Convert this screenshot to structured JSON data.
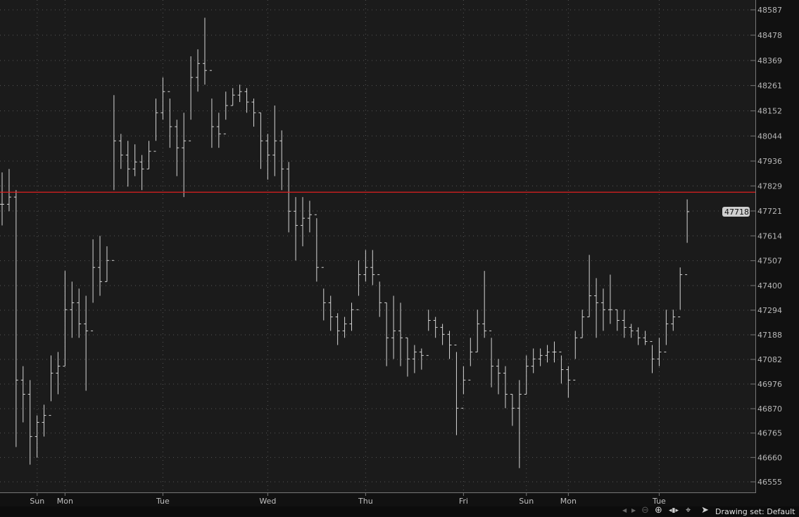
{
  "chart_data": {
    "type": "ohlc",
    "ylim": [
      46555,
      48587
    ],
    "y_ticks": [
      48587,
      48478,
      48369,
      48261,
      48152,
      48044,
      47936,
      47829,
      47721,
      47614,
      47507,
      47400,
      47294,
      47188,
      47082,
      46976,
      46870,
      46765,
      46660,
      46555
    ],
    "grid": true,
    "current_price": "47718",
    "reference_line": 47802,
    "colors": {
      "background": "#1b1b1b",
      "bars": "#d4d4d4",
      "reference_line": "#e02020",
      "grid": "#555555",
      "axis_background": "#111111"
    },
    "x_labels": [
      {
        "label": "Sun",
        "bar": 3
      },
      {
        "label": "Mon",
        "bar": 9
      },
      {
        "label": "Tue",
        "bar": 23
      },
      {
        "label": "Wed",
        "bar": 38
      },
      {
        "label": "Thu",
        "bar": 52
      },
      {
        "label": "Fri",
        "bar": 66
      },
      {
        "label": "Sun",
        "bar": 75
      },
      {
        "label": "Mon",
        "bar": 81
      },
      {
        "label": "Tue",
        "bar": 94
      }
    ],
    "bars_hlc": [
      [
        47887,
        47659,
        47750
      ],
      [
        47902,
        47720,
        47781
      ],
      [
        47811,
        46705,
        46993
      ],
      [
        47053,
        46811,
        46932
      ],
      [
        46993,
        46629,
        46750
      ],
      [
        46841,
        46659,
        46811
      ],
      [
        46887,
        46750,
        46841
      ],
      [
        47099,
        46902,
        47023
      ],
      [
        47114,
        46932,
        47053
      ],
      [
        47463,
        47053,
        47296
      ],
      [
        47417,
        47175,
        47326
      ],
      [
        47387,
        47175,
        47235
      ],
      [
        47356,
        46947,
        47205
      ],
      [
        47599,
        47326,
        47478
      ],
      [
        47614,
        47356,
        47417
      ],
      [
        47569,
        47417,
        47508
      ],
      [
        48220,
        47811,
        48023
      ],
      [
        48053,
        47902,
        47962
      ],
      [
        48023,
        47826,
        47902
      ],
      [
        48008,
        47871,
        47932
      ],
      [
        47962,
        47811,
        47902
      ],
      [
        48023,
        47902,
        47978
      ],
      [
        48205,
        48023,
        48144
      ],
      [
        48296,
        48114,
        48235
      ],
      [
        48205,
        47993,
        48084
      ],
      [
        48114,
        47871,
        47993
      ],
      [
        48144,
        47781,
        48023
      ],
      [
        48387,
        48114,
        48296
      ],
      [
        48417,
        48235,
        48356
      ],
      [
        48553,
        48265,
        48326
      ],
      [
        48205,
        47993,
        48084
      ],
      [
        48144,
        47993,
        48053
      ],
      [
        48235,
        48114,
        48175
      ],
      [
        48250,
        48175,
        48220
      ],
      [
        48265,
        48190,
        48235
      ],
      [
        48250,
        48144,
        48190
      ],
      [
        48205,
        48084,
        48144
      ],
      [
        48144,
        47902,
        48023
      ],
      [
        48053,
        47856,
        47962
      ],
      [
        48175,
        47871,
        48023
      ],
      [
        48068,
        47811,
        47902
      ],
      [
        47932,
        47629,
        47720
      ],
      [
        47781,
        47508,
        47659
      ],
      [
        47781,
        47569,
        47690
      ],
      [
        47765,
        47629,
        47705
      ],
      [
        47690,
        47417,
        47478
      ],
      [
        47387,
        47250,
        47326
      ],
      [
        47356,
        47205,
        47265
      ],
      [
        47281,
        47144,
        47205
      ],
      [
        47265,
        47175,
        47235
      ],
      [
        47326,
        47205,
        47296
      ],
      [
        47508,
        47356,
        47447
      ],
      [
        47553,
        47417,
        47478
      ],
      [
        47553,
        47402,
        47447
      ],
      [
        47417,
        47265,
        47326
      ],
      [
        47326,
        47053,
        47175
      ],
      [
        47356,
        47084,
        47205
      ],
      [
        47326,
        47053,
        47175
      ],
      [
        47175,
        47008,
        47084
      ],
      [
        47144,
        47023,
        47114
      ],
      [
        47129,
        47038,
        47099
      ],
      [
        47296,
        47205,
        47250
      ],
      [
        47265,
        47175,
        47220
      ],
      [
        47235,
        47144,
        47190
      ],
      [
        47205,
        47084,
        47144
      ],
      [
        47114,
        46756,
        46872
      ],
      [
        47053,
        46932,
        46993
      ],
      [
        47175,
        47053,
        47114
      ],
      [
        47296,
        47114,
        47235
      ],
      [
        47463,
        47175,
        47205
      ],
      [
        47175,
        46962,
        47053
      ],
      [
        47084,
        46932,
        47023
      ],
      [
        47053,
        46872,
        46932
      ],
      [
        46932,
        46796,
        46872
      ],
      [
        46993,
        46614,
        46932
      ],
      [
        47099,
        46932,
        47053
      ],
      [
        47129,
        47023,
        47084
      ],
      [
        47129,
        47053,
        47099
      ],
      [
        47144,
        47069,
        47114
      ],
      [
        47159,
        47069,
        47114
      ],
      [
        47099,
        46978,
        47038
      ],
      [
        47053,
        46917,
        46993
      ],
      [
        47205,
        47084,
        47175
      ],
      [
        47296,
        47175,
        47265
      ],
      [
        47532,
        47265,
        47356
      ],
      [
        47432,
        47175,
        47326
      ],
      [
        47387,
        47205,
        47296
      ],
      [
        47447,
        47235,
        47296
      ],
      [
        47296,
        47205,
        47250
      ],
      [
        47296,
        47175,
        47220
      ],
      [
        47235,
        47175,
        47205
      ],
      [
        47220,
        47144,
        47175
      ],
      [
        47205,
        47144,
        47159
      ],
      [
        47144,
        47023,
        47084
      ],
      [
        47175,
        47053,
        47114
      ],
      [
        47296,
        47144,
        47235
      ],
      [
        47296,
        47205,
        47265
      ],
      [
        47478,
        47296,
        47447
      ],
      [
        47771,
        47584,
        47718
      ]
    ]
  },
  "toolbar": {
    "icons": [
      "scroll-left-icon",
      "scroll-right-icon",
      "zoom-out-icon",
      "zoom-in-icon",
      "pan-icon",
      "crosshair-icon",
      "pointer-icon"
    ],
    "drawing_set_label": "Drawing set: Default"
  }
}
